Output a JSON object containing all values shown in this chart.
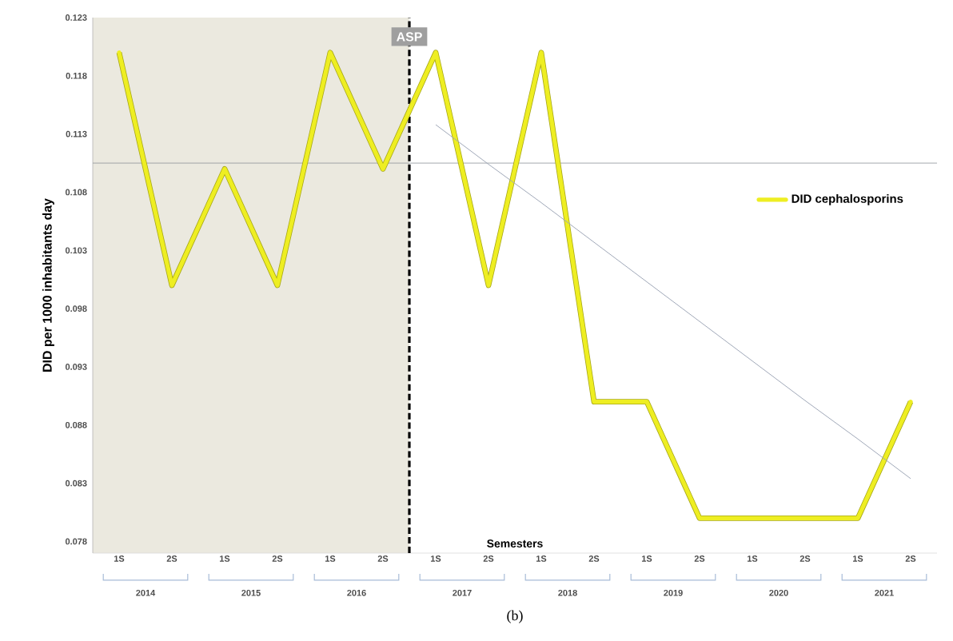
{
  "chart_data": {
    "type": "line",
    "ylabel": "DID per 1000 inhabitants  day",
    "xlabel": "Semesters",
    "categories": [
      "1S",
      "2S",
      "1S",
      "2S",
      "1S",
      "2S",
      "1S",
      "2S",
      "1S",
      "2S",
      "1S",
      "2S",
      "1S",
      "2S",
      "1S",
      "2S"
    ],
    "series": [
      {
        "name": "DID cephalosporins",
        "color": "#eeee22",
        "values": [
          0.12,
          0.1,
          0.11,
          0.1,
          0.12,
          0.11,
          0.12,
          0.1,
          0.12,
          0.09,
          0.09,
          0.08,
          0.08,
          0.08,
          0.08,
          0.09
        ]
      },
      {
        "type": "line",
        "color": "#a0a8b8",
        "values": [
          null,
          null,
          null,
          null,
          null,
          null,
          0.1138,
          0.1104,
          0.1071,
          0.1037,
          0.1003,
          0.0969,
          0.0935,
          0.0901,
          0.0868,
          0.0834
        ]
      }
    ],
    "ylim": [
      0.077,
      0.123
    ],
    "yticks": [
      0.078,
      0.083,
      0.088,
      0.093,
      0.098,
      0.103,
      0.108,
      0.113,
      0.118,
      0.123
    ],
    "ref_lines": [
      {
        "axis": "y",
        "value": 0.1105,
        "color": "#8a9098"
      }
    ],
    "annotations": [
      "2014",
      "2015",
      "2016",
      "2017",
      "2018",
      "2019",
      "2020",
      "2021",
      "ASP",
      "(b)"
    ],
    "legend": "right",
    "grid": false,
    "marker": "none",
    "line_style": "solid"
  }
}
